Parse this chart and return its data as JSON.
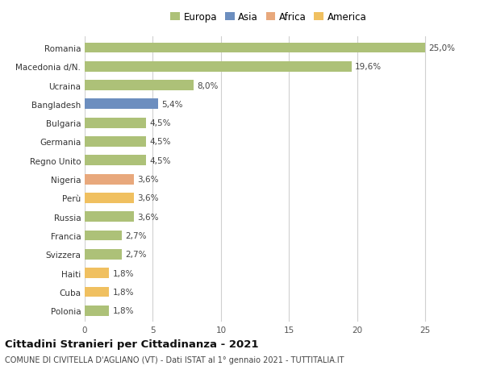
{
  "countries": [
    "Romania",
    "Macedonia d/N.",
    "Ucraina",
    "Bangladesh",
    "Bulgaria",
    "Germania",
    "Regno Unito",
    "Nigeria",
    "Perù",
    "Russia",
    "Francia",
    "Svizzera",
    "Haiti",
    "Cuba",
    "Polonia"
  ],
  "values": [
    25.0,
    19.6,
    8.0,
    5.4,
    4.5,
    4.5,
    4.5,
    3.6,
    3.6,
    3.6,
    2.7,
    2.7,
    1.8,
    1.8,
    1.8
  ],
  "labels": [
    "25,0%",
    "19,6%",
    "8,0%",
    "5,4%",
    "4,5%",
    "4,5%",
    "4,5%",
    "3,6%",
    "3,6%",
    "3,6%",
    "2,7%",
    "2,7%",
    "1,8%",
    "1,8%",
    "1,8%"
  ],
  "colors": [
    "#adc178",
    "#adc178",
    "#adc178",
    "#6c8ebf",
    "#adc178",
    "#adc178",
    "#adc178",
    "#e8a87c",
    "#f0c060",
    "#adc178",
    "#adc178",
    "#adc178",
    "#f0c060",
    "#f0c060",
    "#adc178"
  ],
  "legend_labels": [
    "Europa",
    "Asia",
    "Africa",
    "America"
  ],
  "legend_colors": [
    "#adc178",
    "#6c8ebf",
    "#e8a87c",
    "#f0c060"
  ],
  "title": "Cittadini Stranieri per Cittadinanza - 2021",
  "subtitle": "COMUNE DI CIVITELLA D'AGLIANO (VT) - Dati ISTAT al 1° gennaio 2021 - TUTTITALIA.IT",
  "xlim": [
    0,
    27
  ],
  "xticks": [
    0,
    5,
    10,
    15,
    20,
    25
  ],
  "bg_color": "#ffffff",
  "grid_color": "#d0d0d0",
  "bar_height": 0.55,
  "label_fontsize": 7.5,
  "tick_fontsize": 7.5,
  "title_fontsize": 9.5,
  "subtitle_fontsize": 7.0,
  "legend_fontsize": 8.5
}
